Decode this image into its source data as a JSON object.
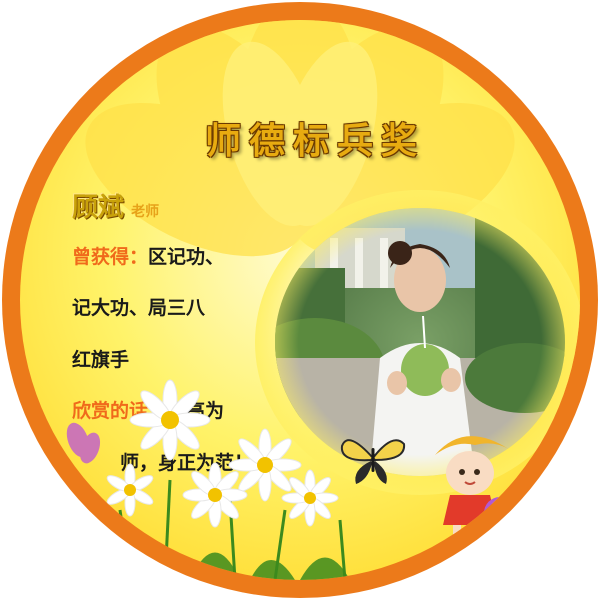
{
  "badge": {
    "title": "师德标兵奖",
    "teacher_name": "顾斌",
    "honorific": "老师",
    "achievements_label": "曾获得：",
    "achievements_line1": "区记功、",
    "achievements_line2": "记大功、局三八",
    "achievements_line3": "红旗手",
    "quote_label": "欣赏的话：",
    "quote_line1": "学高为",
    "quote_line2": "师，身正为范！"
  },
  "colors": {
    "ring": "#ec7a1a",
    "background": "#ffe83a",
    "title_fill": "#e8ab10",
    "label_orange": "#f06a1b"
  }
}
